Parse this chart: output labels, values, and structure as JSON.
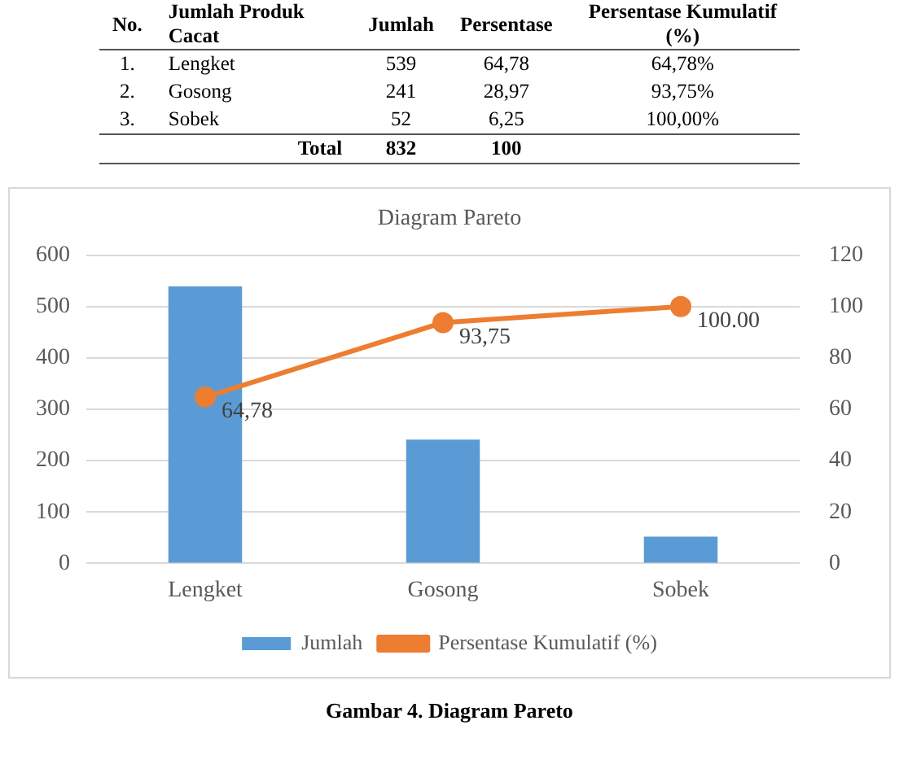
{
  "chart_data": [
    {
      "type": "other",
      "categories": [
        "Lengket",
        "Gosong",
        "Sobek"
      ],
      "annotations": [
        "No.",
        "Jumlah Produk Cacat",
        "1.",
        "2.",
        "3.",
        "Total",
        "832",
        "100"
      ],
      "series": [
        {
          "name": "Jumlah",
          "values": [
            539,
            241,
            52
          ],
          "value_labels": [
            "539",
            "241",
            "52"
          ]
        },
        {
          "name": "Persentase",
          "values": [
            64.78,
            28.97,
            6.25
          ],
          "value_labels": [
            "64,78",
            "28,97",
            "6,25"
          ]
        },
        {
          "name": "Persentase Kumulatif (%)",
          "values": [
            64.78,
            93.75,
            100
          ],
          "value_labels": [
            "64,78%",
            "93,75%",
            "100,00%"
          ]
        }
      ]
    },
    {
      "type": "bar",
      "title": "Diagram Pareto",
      "categories": [
        "Lengket",
        "Gosong",
        "Sobek"
      ],
      "series": [
        {
          "name": "Jumlah",
          "color": "#5b9bd5",
          "values": [
            539,
            241,
            52
          ]
        },
        {
          "name": "Persentase Kumulatif (%)",
          "type": "line",
          "axis": "y2",
          "color": "#ed7d31",
          "values": [
            64.78,
            93.75,
            100
          ],
          "value_labels": [
            "64,78",
            "93,75",
            "100.00"
          ],
          "marker": "circle"
        }
      ],
      "ylim": [
        0,
        600
      ],
      "yticks": [
        0,
        100,
        200,
        300,
        400,
        500,
        600
      ],
      "y2lim": [
        0,
        120
      ],
      "y2ticks": [
        0,
        20,
        40,
        60,
        80,
        100,
        120
      ],
      "grid": "y",
      "legend": "bottom",
      "annotations": [
        "Gambar 4. Diagram Pareto"
      ]
    }
  ]
}
